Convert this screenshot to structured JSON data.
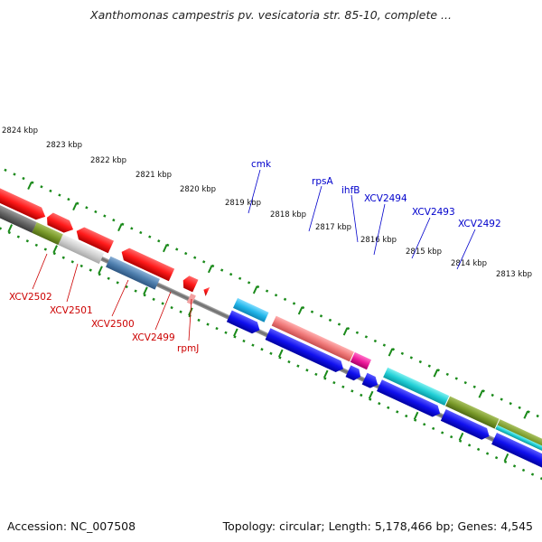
{
  "title": "Xanthomonas campestris pv. vesicatoria str. 85-10, complete ...",
  "footer": {
    "accession": "Accession: NC_007508",
    "stats": "Topology: circular; Length: 5,178,466 bp; Genes: 4,545"
  },
  "colors": {
    "forward_label": "#0000cc",
    "reverse_label": "#cc0000",
    "backbone": "#808080",
    "tick": "#1a8a1a"
  },
  "kbp_labels": [
    "2824 kbp",
    "2823 kbp",
    "2822 kbp",
    "2821 kbp",
    "2820 kbp",
    "2819 kbp",
    "2818 kbp",
    "2817 kbp",
    "2816 kbp",
    "2815 kbp",
    "2814 kbp",
    "2813 kbp"
  ],
  "forward_genes": [
    "cmk",
    "rpsA",
    "ihfB",
    "XCV2494",
    "XCV2493",
    "XCV2492"
  ],
  "reverse_genes": [
    "XCV2502",
    "XCV2501",
    "XCV2500",
    "XCV2499",
    "rpmJ"
  ]
}
